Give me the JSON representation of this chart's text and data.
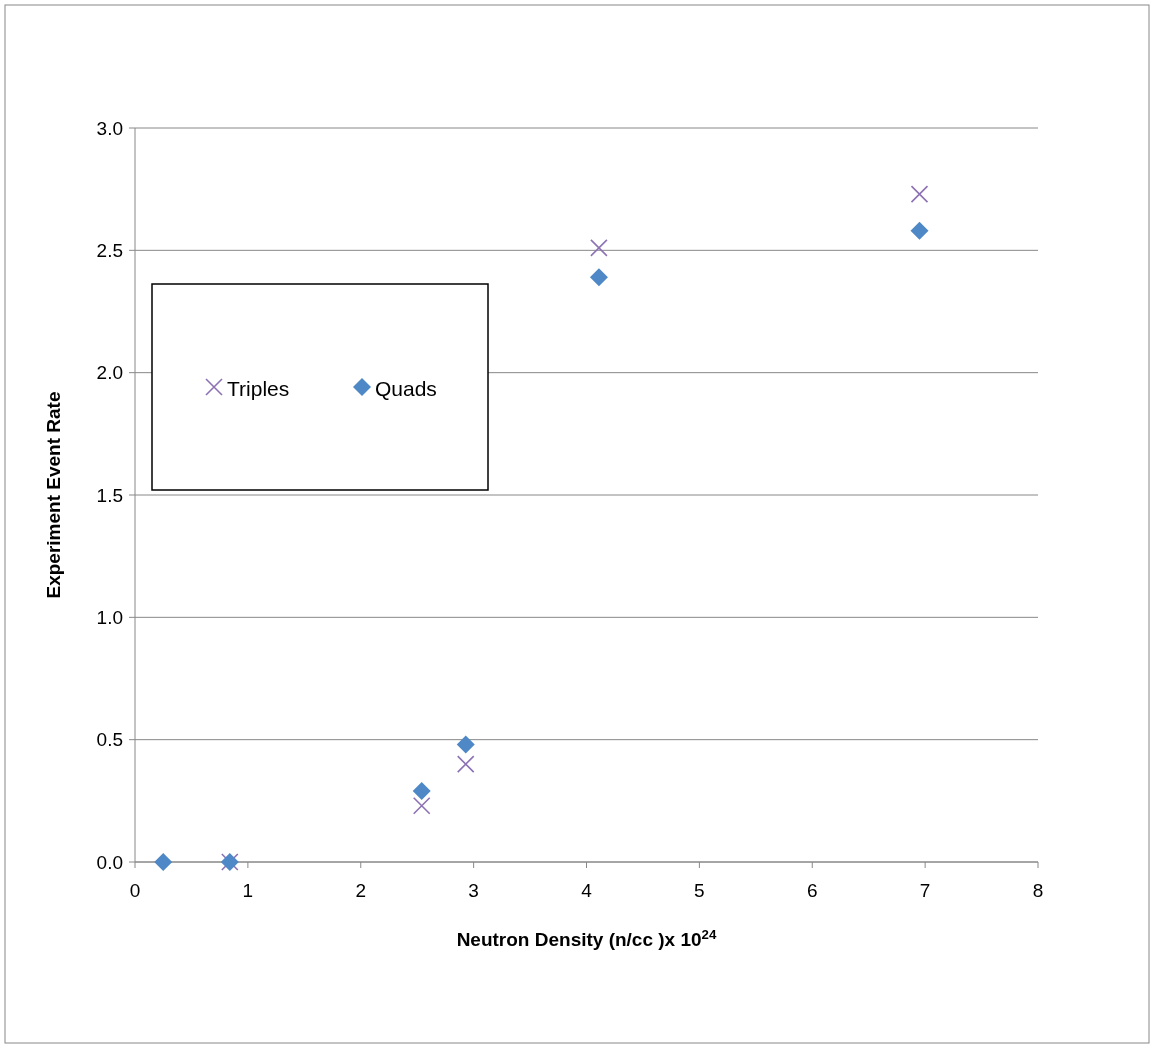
{
  "chart_data": {
    "type": "scatter",
    "xlabel": "Neutron Density (n/cc )x 10$^{24}$",
    "ylabel": "Experiment Event Rate",
    "xlim": [
      0,
      8
    ],
    "xticks": [
      0,
      1,
      2,
      3,
      4,
      5,
      6,
      7,
      8
    ],
    "ylim": [
      0,
      3
    ],
    "yticks": [
      {
        "value": 0,
        "label": "0.0"
      },
      {
        "value": 0.5,
        "label": "0.5"
      },
      {
        "value": 1,
        "label": "1.0"
      },
      {
        "value": 1.5,
        "label": "1.5"
      },
      {
        "value": 2,
        "label": "2.0"
      },
      {
        "value": 2.5,
        "label": "2.5"
      },
      {
        "value": 3,
        "label": "3.0"
      }
    ],
    "grid": "y",
    "legend": "top left",
    "series": [
      {
        "name": "Triples",
        "color": "#8c72b4",
        "marker": "cross",
        "x": [
          0.84,
          2.54,
          2.93,
          4.11,
          6.95
        ],
        "values": [
          0,
          0.23,
          0.4,
          2.51,
          2.73
        ]
      },
      {
        "name": "Quads",
        "color": "#4f88c6",
        "marker": "diamond",
        "x": [
          0.25,
          0.84,
          2.54,
          2.93,
          4.11,
          6.95
        ],
        "values": [
          0,
          0,
          0.29,
          0.48,
          2.39,
          2.58
        ]
      }
    ]
  }
}
